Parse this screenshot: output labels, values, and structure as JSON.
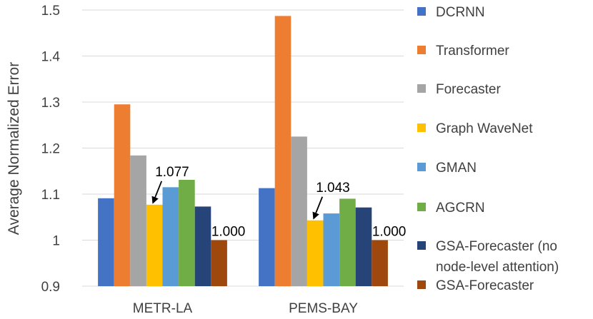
{
  "chart_data": {
    "type": "bar",
    "title": "",
    "xlabel": "",
    "ylabel": "Average Normalized Error",
    "ylim": [
      0.9,
      1.5
    ],
    "yticks": [
      "0.9",
      "1",
      "1.1",
      "1.2",
      "1.3",
      "1.4",
      "1.5"
    ],
    "grid": true,
    "legend_position": "right",
    "categories": [
      "METR-LA",
      "PEMS-BAY"
    ],
    "series": [
      {
        "name": "DCRNN",
        "color": "#4472c4",
        "values": [
          1.091,
          1.113
        ]
      },
      {
        "name": "Transformer",
        "color": "#ed7d31",
        "values": [
          1.295,
          1.487
        ]
      },
      {
        "name": "Forecaster",
        "color": "#a5a5a5",
        "values": [
          1.184,
          1.225
        ]
      },
      {
        "name": "Graph WaveNet",
        "color": "#ffc000",
        "values": [
          1.077,
          1.043
        ]
      },
      {
        "name": "GMAN",
        "color": "#5b9bd5",
        "values": [
          1.115,
          1.058
        ]
      },
      {
        "name": "AGCRN",
        "color": "#70ad47",
        "values": [
          1.131,
          1.09
        ]
      },
      {
        "name": "GSA-Forecaster (no node-level attention)",
        "legend_lines": [
          "GSA-Forecaster (no",
          "node-level attention)"
        ],
        "color": "#264478",
        "values": [
          1.073,
          1.071
        ]
      },
      {
        "name": "GSA-Forecaster",
        "color": "#9e480e",
        "values": [
          1.0,
          1.0
        ]
      }
    ],
    "annotations": [
      {
        "category": 0,
        "series": 3,
        "text": "1.077",
        "arrow": true
      },
      {
        "category": 0,
        "series": 7,
        "text": "1.000",
        "arrow": false
      },
      {
        "category": 1,
        "series": 3,
        "text": "1.043",
        "arrow": true
      },
      {
        "category": 1,
        "series": 7,
        "text": "1.000",
        "arrow": false
      }
    ]
  }
}
